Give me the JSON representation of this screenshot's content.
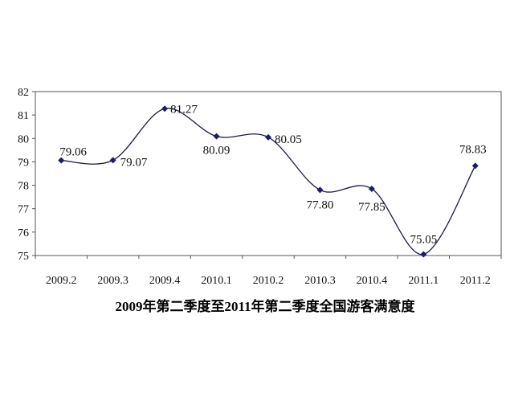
{
  "chart_data": {
    "type": "line",
    "title": "2009年第二季度至2011年第二季度全国游客满意度",
    "xlabel": "",
    "ylabel": "",
    "categories": [
      "2009.2",
      "2009.3",
      "2009.4",
      "2010.1",
      "2010.2",
      "2010.3",
      "2010.4",
      "2011.1",
      "2011.2"
    ],
    "series": [
      {
        "values": [
          79.06,
          79.07,
          81.27,
          80.09,
          80.05,
          77.8,
          77.85,
          75.05,
          78.83
        ],
        "data_labels": [
          "79.06",
          "79.07",
          "81.27",
          "80.09",
          "80.05",
          "77.80",
          "77.85",
          "75.05",
          "78.83"
        ]
      }
    ],
    "y_ticks": [
      "75",
      "76",
      "77",
      "78",
      "79",
      "80",
      "81",
      "82"
    ],
    "ylim": [
      75,
      82
    ],
    "grid": false,
    "legend": "none",
    "line_color": "#1a1a40",
    "marker_color": "#1c1c6e",
    "marker": "diamond"
  }
}
